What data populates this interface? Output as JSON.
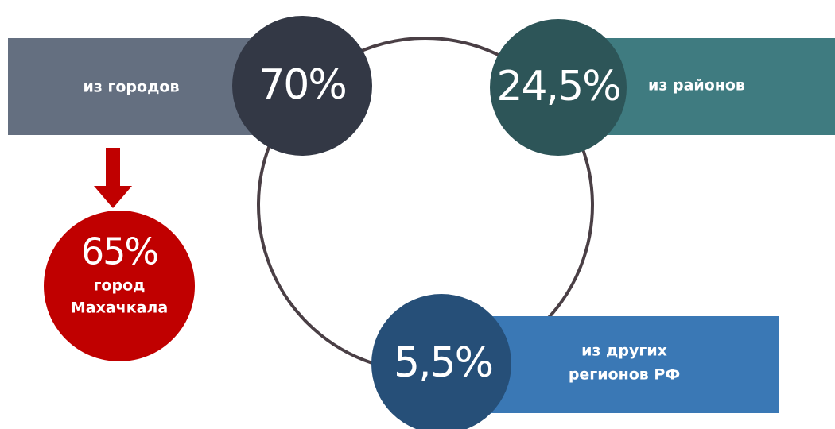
{
  "items": [
    {
      "value": "70%",
      "label": "из городов"
    },
    {
      "value": "24,5%",
      "label": "из районов"
    },
    {
      "value": "5,5%",
      "label": [
        "из других",
        "регионов РФ"
      ]
    }
  ],
  "highlight": {
    "value": "65%",
    "label": [
      "город",
      "Махачкала"
    ]
  }
}
